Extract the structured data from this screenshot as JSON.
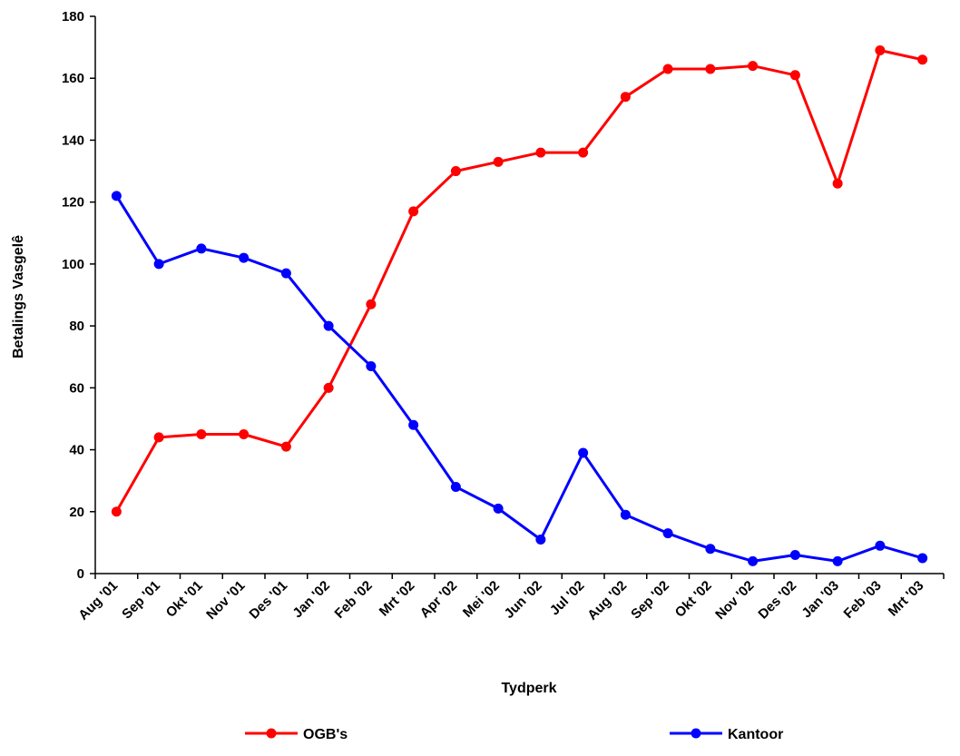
{
  "chart_data": {
    "type": "line",
    "title": "",
    "xlabel": "Tydperk",
    "ylabel": "Betalings Vasgelê",
    "ylim": [
      0,
      180
    ],
    "yticks": [
      0,
      20,
      40,
      60,
      80,
      100,
      120,
      140,
      160,
      180
    ],
    "categories": [
      "Aug '01",
      "Sep '01",
      "Okt '01",
      "Nov '01",
      "Des '01",
      "Jan '02",
      "Feb '02",
      "Mrt '02",
      "Apr '02",
      "Mei '02",
      "Jun '02",
      "Jul '02",
      "Aug '02",
      "Sep '02",
      "Okt '02",
      "Nov '02",
      "Des '02",
      "Jan '03",
      "Feb '03",
      "Mrt '03"
    ],
    "grid": false,
    "legend": "bottom",
    "series": [
      {
        "name": "OGB's",
        "color": "#ff0000",
        "values": [
          20,
          44,
          45,
          45,
          41,
          60,
          87,
          117,
          130,
          133,
          136,
          136,
          154,
          163,
          163,
          164,
          161,
          126,
          169,
          166
        ]
      },
      {
        "name": "Kantoor",
        "color": "#0000ff",
        "values": [
          122,
          100,
          105,
          102,
          97,
          80,
          67,
          48,
          28,
          21,
          11,
          39,
          19,
          13,
          8,
          4,
          6,
          4,
          9,
          5
        ]
      }
    ]
  }
}
